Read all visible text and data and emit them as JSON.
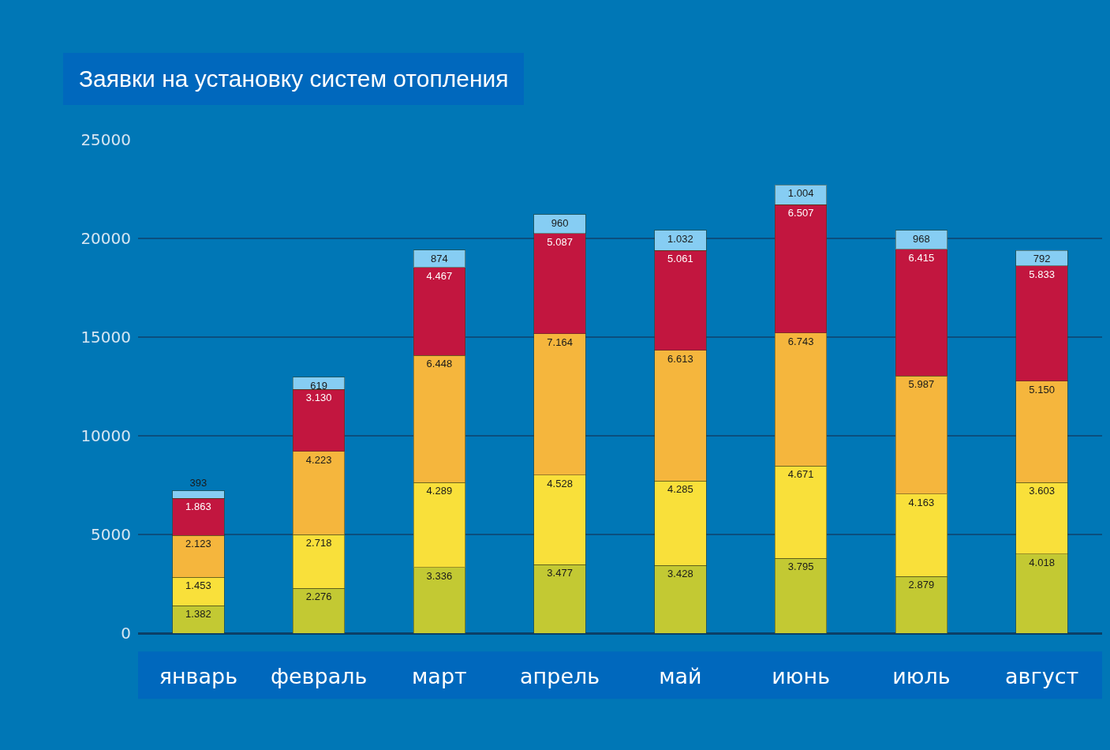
{
  "chart_data": {
    "type": "bar",
    "title": "Заявки на установку систем отопления",
    "stacked": true,
    "grid": "y",
    "categories": [
      "январь",
      "февраль",
      "март",
      "апрель",
      "май",
      "июнь",
      "июль",
      "август"
    ],
    "ylim": [
      0,
      25000
    ],
    "yticks": [
      0,
      5000,
      10000,
      15000,
      20000,
      25000
    ],
    "series": [
      {
        "color": "#c3c933",
        "values": [
          1382,
          2276,
          3336,
          3477,
          3428,
          3795,
          2879,
          4018
        ],
        "value_labels": [
          "1.382",
          "2.276",
          "3.336",
          "3.477",
          "3.428",
          "3.795",
          "2.879",
          "4.018"
        ]
      },
      {
        "color": "#f9e03a",
        "values": [
          1453,
          2718,
          4289,
          4528,
          4285,
          4671,
          4163,
          3603
        ],
        "value_labels": [
          "1.453",
          "2.718",
          "4.289",
          "4.528",
          "4.285",
          "4.671",
          "4.163",
          "3.603"
        ]
      },
      {
        "color": "#f5b63d",
        "values": [
          2123,
          4223,
          6448,
          7164,
          6613,
          6743,
          5987,
          5150
        ],
        "value_labels": [
          "2.123",
          "4.223",
          "6.448",
          "7.164",
          "6.613",
          "6.743",
          "5.987",
          "5.150"
        ]
      },
      {
        "color": "#c2163f",
        "values": [
          1863,
          3130,
          4467,
          5087,
          5061,
          6507,
          6415,
          5833
        ],
        "value_labels": [
          "1.863",
          "3.130",
          "4.467",
          "5.087",
          "5.061",
          "6.507",
          "6.415",
          "5.833"
        ]
      },
      {
        "color": "#86cdf3",
        "values": [
          393,
          619,
          874,
          960,
          1032,
          1004,
          968,
          792
        ],
        "value_labels": [
          "393",
          "619",
          "874",
          "960",
          "1.032",
          "1.004",
          "968",
          "792"
        ]
      }
    ]
  }
}
